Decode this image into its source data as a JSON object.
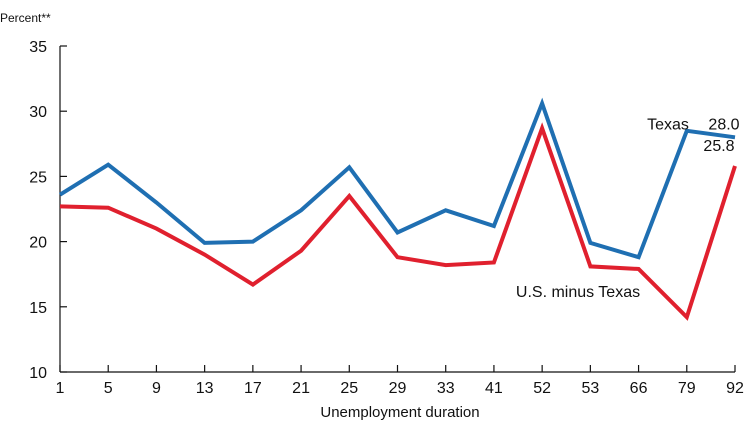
{
  "chart_data": {
    "type": "line",
    "ylabel": "Percent**",
    "xlabel": "Unemployment duration",
    "ylim": [
      10,
      35
    ],
    "yticks": [
      10,
      15,
      20,
      25,
      30,
      35
    ],
    "categories": [
      "1",
      "5",
      "9",
      "13",
      "17",
      "21",
      "25",
      "29",
      "33",
      "41",
      "52",
      "53",
      "66",
      "79",
      "92"
    ],
    "series": [
      {
        "name": "Texas",
        "color": "#1f6fb2",
        "values": [
          23.6,
          25.9,
          23.0,
          19.9,
          20.0,
          22.4,
          25.7,
          20.7,
          22.4,
          21.2,
          30.6,
          19.9,
          18.8,
          28.5,
          28.0
        ]
      },
      {
        "name": "U.S. minus Texas",
        "color": "#e0202e",
        "values": [
          22.7,
          22.6,
          21.0,
          19.0,
          16.7,
          19.3,
          23.5,
          18.8,
          18.2,
          18.4,
          28.7,
          18.1,
          17.9,
          14.2,
          25.8
        ]
      }
    ],
    "end_labels": [
      "28.0",
      "25.8"
    ],
    "grid": false
  }
}
